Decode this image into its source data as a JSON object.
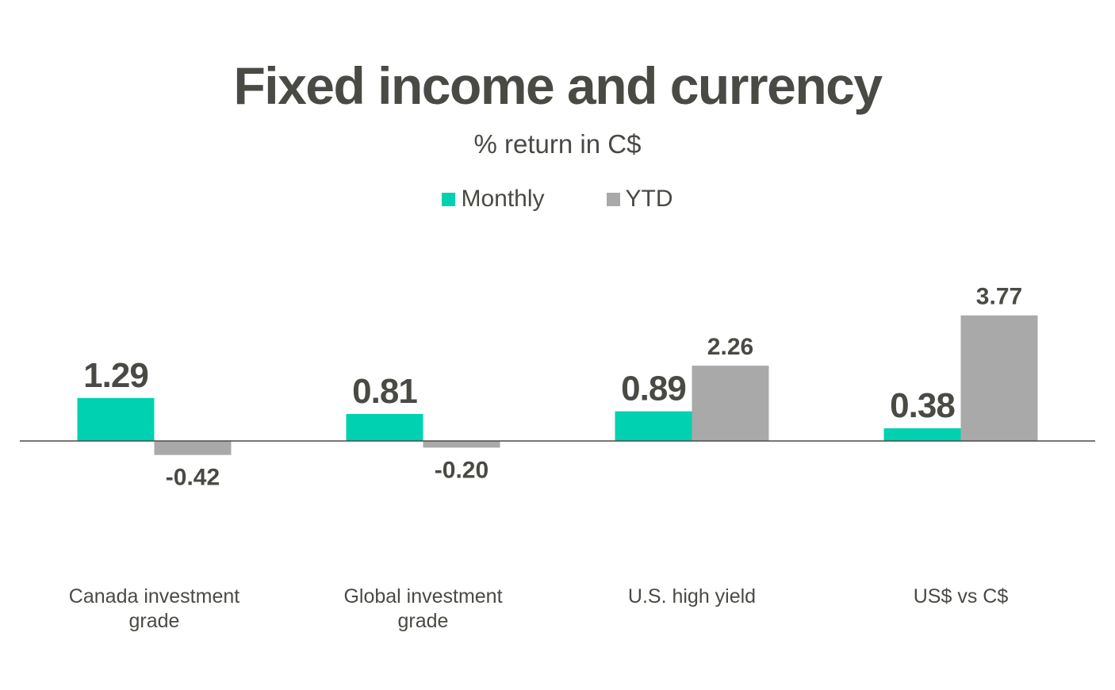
{
  "chart_data": {
    "type": "bar",
    "title": "Fixed income and currency",
    "subtitle": "% return in C$",
    "categories": [
      [
        "Canada investment",
        "grade"
      ],
      [
        "Global investment",
        "grade"
      ],
      [
        "U.S. high yield"
      ],
      [
        "US$ vs C$"
      ]
    ],
    "series": [
      {
        "name": "Monthly",
        "color": "#00d1b0",
        "values": [
          1.29,
          0.81,
          0.89,
          0.38
        ]
      },
      {
        "name": "YTD",
        "color": "#a9a9a9",
        "values": [
          -0.42,
          -0.2,
          2.26,
          3.77
        ]
      }
    ],
    "ylim": [
      -1.2,
      4.2
    ],
    "grid": false,
    "legend_position": "top-center"
  }
}
